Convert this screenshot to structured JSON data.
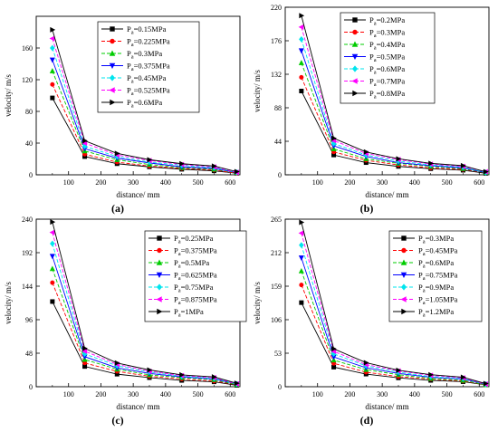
{
  "chart_data": [
    {
      "type": "line",
      "panel_label": "(a)",
      "xlabel": "distance/ mm",
      "ylabel": "velocity/ m/s",
      "xlim": [
        0,
        630
      ],
      "ylim": [
        0,
        200
      ],
      "xticks": [
        100,
        200,
        300,
        400,
        500,
        600
      ],
      "yticks": [
        0,
        40,
        80,
        120,
        160
      ],
      "x": [
        50,
        150,
        250,
        350,
        450,
        550,
        620
      ],
      "series": [
        {
          "name_prefix": "P",
          "name_sub": "a",
          "name_value": "=0.15MPa",
          "values": [
            97,
            23,
            14,
            10,
            7,
            5,
            2
          ]
        },
        {
          "name_prefix": "P",
          "name_sub": "a",
          "name_value": "=0.225MPa",
          "values": [
            114,
            26,
            16,
            11,
            8,
            6,
            2
          ]
        },
        {
          "name_prefix": "P",
          "name_sub": "a",
          "name_value": "=0.3MPa",
          "values": [
            131,
            30,
            19,
            13,
            9,
            7,
            3
          ]
        },
        {
          "name_prefix": "P",
          "name_sub": "a",
          "name_value": "=0.375MPa",
          "values": [
            145,
            33,
            21,
            15,
            10,
            8,
            3
          ]
        },
        {
          "name_prefix": "P",
          "name_sub": "a",
          "name_value": "=0.45MPa",
          "values": [
            160,
            36,
            23,
            16,
            12,
            9,
            3
          ]
        },
        {
          "name_prefix": "P",
          "name_sub": "a",
          "name_value": "=0.525MPa",
          "values": [
            172,
            40,
            25,
            18,
            13,
            10,
            3
          ]
        },
        {
          "name_prefix": "P",
          "name_sub": "a",
          "name_value": "=0.6MPa",
          "values": [
            183,
            43,
            27,
            19,
            14,
            11,
            4
          ]
        }
      ]
    },
    {
      "type": "line",
      "panel_label": "(b)",
      "xlabel": "distance/ mm",
      "ylabel": "velocity/ m/s",
      "xlim": [
        0,
        630
      ],
      "ylim": [
        0,
        220
      ],
      "xticks": [
        100,
        200,
        300,
        400,
        500,
        600
      ],
      "yticks": [
        0,
        44,
        88,
        132,
        176,
        220
      ],
      "x": [
        50,
        150,
        250,
        350,
        450,
        550,
        620
      ],
      "series": [
        {
          "name_prefix": "P",
          "name_sub": "a",
          "name_value": "=0.2MPa",
          "values": [
            110,
            26,
            16,
            11,
            8,
            6,
            2
          ]
        },
        {
          "name_prefix": "P",
          "name_sub": "a",
          "name_value": "=0.3MPa",
          "values": [
            128,
            30,
            19,
            13,
            9,
            7,
            3
          ]
        },
        {
          "name_prefix": "P",
          "name_sub": "a",
          "name_value": "=0.4MPa",
          "values": [
            147,
            34,
            21,
            15,
            11,
            8,
            3
          ]
        },
        {
          "name_prefix": "P",
          "name_sub": "a",
          "name_value": "=0.5MPa",
          "values": [
            163,
            38,
            24,
            16,
            12,
            9,
            3
          ]
        },
        {
          "name_prefix": "P",
          "name_sub": "a",
          "name_value": "=0.6MPa",
          "values": [
            178,
            41,
            26,
            18,
            13,
            10,
            3
          ]
        },
        {
          "name_prefix": "P",
          "name_sub": "a",
          "name_value": "=0.7MPa",
          "values": [
            194,
            45,
            28,
            20,
            14,
            11,
            4
          ]
        },
        {
          "name_prefix": "P",
          "name_sub": "a",
          "name_value": "=0.8MPa",
          "values": [
            209,
            48,
            30,
            21,
            15,
            12,
            4
          ]
        }
      ]
    },
    {
      "type": "line",
      "panel_label": "(c)",
      "xlabel": "distance/ mm",
      "ylabel": "velocity/ m/s",
      "xlim": [
        0,
        630
      ],
      "ylim": [
        0,
        240
      ],
      "xticks": [
        100,
        200,
        300,
        400,
        500,
        600
      ],
      "yticks": [
        0,
        48,
        96,
        144,
        192,
        240
      ],
      "x": [
        50,
        150,
        250,
        350,
        450,
        550,
        620
      ],
      "series": [
        {
          "name_prefix": "P",
          "name_sub": "a",
          "name_value": "=0.25MPa",
          "values": [
            122,
            29,
            18,
            13,
            9,
            7,
            2
          ]
        },
        {
          "name_prefix": "P",
          "name_sub": "a",
          "name_value": "=0.375MPa",
          "values": [
            149,
            34,
            22,
            15,
            11,
            8,
            3
          ]
        },
        {
          "name_prefix": "P",
          "name_sub": "a",
          "name_value": "=0.5MPa",
          "values": [
            169,
            39,
            25,
            17,
            13,
            10,
            3
          ]
        },
        {
          "name_prefix": "P",
          "name_sub": "a",
          "name_value": "=0.625MPa",
          "values": [
            187,
            43,
            27,
            19,
            14,
            11,
            4
          ]
        },
        {
          "name_prefix": "P",
          "name_sub": "a",
          "name_value": "=0.75MPa",
          "values": [
            205,
            47,
            30,
            21,
            15,
            12,
            4
          ]
        },
        {
          "name_prefix": "P",
          "name_sub": "a",
          "name_value": "=0.875MPa",
          "values": [
            221,
            51,
            32,
            22,
            16,
            13,
            4
          ]
        },
        {
          "name_prefix": "P",
          "name_sub": "a",
          "name_value": "=1MPa",
          "values": [
            236,
            55,
            34,
            24,
            17,
            14,
            5
          ]
        }
      ]
    },
    {
      "type": "line",
      "panel_label": "(d)",
      "xlabel": "distance/ mm",
      "ylabel": "velocity/ m/s",
      "xlim": [
        0,
        630
      ],
      "ylim": [
        0,
        265
      ],
      "xticks": [
        100,
        200,
        300,
        400,
        500,
        600
      ],
      "yticks": [
        0,
        53,
        106,
        159,
        212,
        265
      ],
      "x": [
        50,
        150,
        250,
        350,
        450,
        550,
        620
      ],
      "series": [
        {
          "name_prefix": "P",
          "name_sub": "a",
          "name_value": "=0.3MPa",
          "values": [
            133,
            31,
            20,
            14,
            10,
            8,
            3
          ]
        },
        {
          "name_prefix": "P",
          "name_sub": "a",
          "name_value": "=0.45MPa",
          "values": [
            161,
            37,
            23,
            16,
            12,
            9,
            3
          ]
        },
        {
          "name_prefix": "P",
          "name_sub": "a",
          "name_value": "=0.6MPa",
          "values": [
            183,
            42,
            27,
            19,
            13,
            10,
            3
          ]
        },
        {
          "name_prefix": "P",
          "name_sub": "a",
          "name_value": "=0.75MPa",
          "values": [
            204,
            47,
            30,
            21,
            15,
            12,
            4
          ]
        },
        {
          "name_prefix": "P",
          "name_sub": "a",
          "name_value": "=0.9MPa",
          "values": [
            224,
            52,
            33,
            23,
            16,
            13,
            4
          ]
        },
        {
          "name_prefix": "P",
          "name_sub": "a",
          "name_value": "=1.05MPa",
          "values": [
            243,
            56,
            35,
            25,
            18,
            14,
            4
          ]
        },
        {
          "name_prefix": "P",
          "name_sub": "a",
          "name_value": "=1.2MPa",
          "values": [
            260,
            60,
            38,
            26,
            19,
            15,
            5
          ]
        }
      ]
    }
  ],
  "series_style": [
    {
      "color": "#000000",
      "marker": "square",
      "dash": "solid"
    },
    {
      "color": "#ff0000",
      "marker": "circle",
      "dash": "dashed"
    },
    {
      "color": "#00cc00",
      "marker": "triangle-up",
      "dash": "dashed"
    },
    {
      "color": "#0000ff",
      "marker": "triangle-down",
      "dash": "solid"
    },
    {
      "color": "#00e5ee",
      "marker": "diamond",
      "dash": "dashed"
    },
    {
      "color": "#ff00ff",
      "marker": "triangle-left",
      "dash": "dashed"
    },
    {
      "color": "#000000",
      "marker": "triangle-right",
      "dash": "solid"
    }
  ],
  "legend_position": "top-right"
}
